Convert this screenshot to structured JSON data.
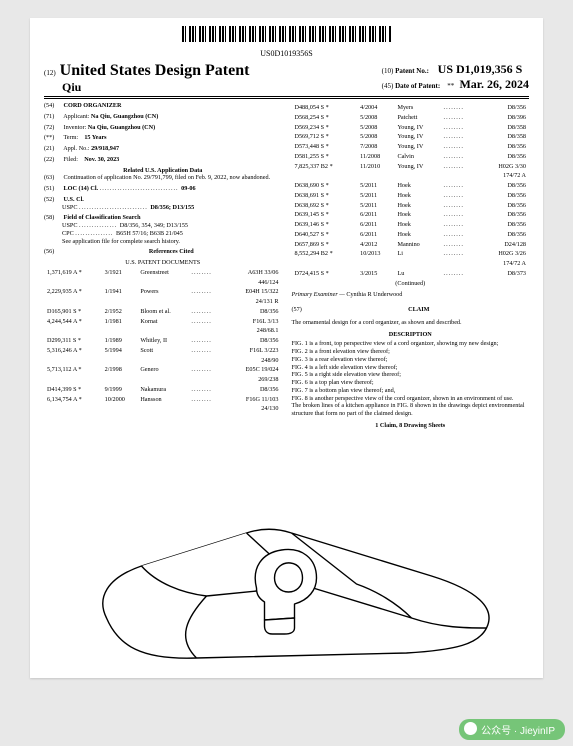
{
  "barcode_text": "US0D1019356S",
  "header": {
    "code12": "(12)",
    "title": "United States Design Patent",
    "applicant_line": "Qiu",
    "code10": "(10)",
    "patent_no_label": "Patent No.:",
    "patent_no": "US D1,019,356 S",
    "code45": "(45)",
    "date_label": "Date of Patent:",
    "date_star": "**",
    "date": "Mar. 26, 2024"
  },
  "left": {
    "s54": {
      "n": "(54)",
      "t": "CORD ORGANIZER"
    },
    "s71": {
      "n": "(71)",
      "t": "Applicant:",
      "v": "Na Qiu, Guangzhou (CN)"
    },
    "s72": {
      "n": "(72)",
      "t": "Inventor:",
      "v": "Na Qiu, Guangzhou (CN)"
    },
    "sterm": {
      "n": "(**)",
      "t": "Term:",
      "v": "15 Years"
    },
    "s21": {
      "n": "(21)",
      "t": "Appl. No.:",
      "v": "29/918,947"
    },
    "s22": {
      "n": "(22)",
      "t": "Filed:",
      "v": "Nov. 30, 2023"
    },
    "related_head": "Related U.S. Application Data",
    "s63": {
      "n": "(63)",
      "v": "Continuation of application No. 29/791,799, filed on Feb. 9, 2022, now abandoned."
    },
    "s51": {
      "n": "(51)",
      "t": "LOC (14) Cl.",
      "v": "09-06"
    },
    "s52": {
      "n": "(52)",
      "t": "U.S. Cl.",
      "l": "USPC",
      "v": "D8/356; D13/155"
    },
    "s58": {
      "n": "(58)",
      "t": "Field of Classification Search",
      "rows": [
        {
          "l": "USPC",
          "v": "D8/356, 354, 349; D13/155"
        },
        {
          "l": "CPC",
          "v": "B65H 57/16; B63B 21/045"
        }
      ],
      "note": "See application file for complete search history."
    },
    "s56": {
      "n": "(56)",
      "t": "References Cited"
    },
    "refs_head": "U.S. PATENT DOCUMENTS",
    "refs": [
      {
        "no": "1,371,619 A *",
        "d": "3/1921",
        "name": "Greenstreet",
        "cls": "A63H 33/06",
        "sub": "446/124"
      },
      {
        "no": "2,229,935 A *",
        "d": "1/1941",
        "name": "Powers",
        "cls": "E04H 15/322",
        "sub": "24/131 R"
      },
      {
        "no": "D165,901 S *",
        "d": "2/1952",
        "name": "Bloom et al.",
        "cls": "D8/356",
        "sub": ""
      },
      {
        "no": "4,244,544 A *",
        "d": "1/1981",
        "name": "Kornat",
        "cls": "F16L 3/13",
        "sub": "248/68.1"
      },
      {
        "no": "D299,311 S *",
        "d": "1/1989",
        "name": "Whitley, II",
        "cls": "D8/356",
        "sub": ""
      },
      {
        "no": "5,316,246 A *",
        "d": "5/1994",
        "name": "Scott",
        "cls": "F16L 3/223",
        "sub": "248/90"
      },
      {
        "no": "5,713,112 A *",
        "d": "2/1998",
        "name": "Genero",
        "cls": "E05C 19/024",
        "sub": "269/238"
      },
      {
        "no": "D414,399 S *",
        "d": "9/1999",
        "name": "Nakamura",
        "cls": "D8/356",
        "sub": ""
      },
      {
        "no": "6,134,754 A *",
        "d": "10/2000",
        "name": "Hansson",
        "cls": "F16G 11/103",
        "sub": "24/130"
      }
    ]
  },
  "right": {
    "refs": [
      {
        "no": "D488,054 S *",
        "d": "4/2004",
        "name": "Myers",
        "cls": "D8/356"
      },
      {
        "no": "D568,254 S *",
        "d": "5/2008",
        "name": "Patchett",
        "cls": "D8/396"
      },
      {
        "no": "D569,234 S *",
        "d": "5/2008",
        "name": "Young, IV",
        "cls": "D8/358"
      },
      {
        "no": "D569,712 S *",
        "d": "5/2008",
        "name": "Young, IV",
        "cls": "D8/358"
      },
      {
        "no": "D573,448 S *",
        "d": "7/2008",
        "name": "Young, IV",
        "cls": "D8/356"
      },
      {
        "no": "D581,255 S *",
        "d": "11/2008",
        "name": "Calvin",
        "cls": "D8/356"
      },
      {
        "no": "7,825,337 B2 *",
        "d": "11/2010",
        "name": "Young, IV",
        "cls": "H02G 3/30",
        "sub": "174/72 A"
      },
      {
        "no": "D638,690 S *",
        "d": "5/2011",
        "name": "Hoek",
        "cls": "D8/356"
      },
      {
        "no": "D638,691 S *",
        "d": "5/2011",
        "name": "Hoek",
        "cls": "D8/356"
      },
      {
        "no": "D638,692 S *",
        "d": "5/2011",
        "name": "Hoek",
        "cls": "D8/356"
      },
      {
        "no": "D639,145 S *",
        "d": "6/2011",
        "name": "Hoek",
        "cls": "D8/356"
      },
      {
        "no": "D639,146 S *",
        "d": "6/2011",
        "name": "Hoek",
        "cls": "D8/356"
      },
      {
        "no": "D640,527 S *",
        "d": "6/2011",
        "name": "Hoek",
        "cls": "D8/356"
      },
      {
        "no": "D657,869 S *",
        "d": "4/2012",
        "name": "Mannino",
        "cls": "D24/128"
      },
      {
        "no": "8,552,294 B2 *",
        "d": "10/2013",
        "name": "Li",
        "cls": "H02G 3/26",
        "sub": "174/72 A"
      },
      {
        "no": "D724,415 S *",
        "d": "3/2015",
        "name": "Lu",
        "cls": "D8/373"
      }
    ],
    "continued": "(Continued)",
    "examiner_label": "Primary Examiner —",
    "examiner": "Cynthia R Underwood",
    "s57": "(57)",
    "claim_head": "CLAIM",
    "claim_text": "The ornamental design for a cord organizer, as shown and described.",
    "desc_head": "DESCRIPTION",
    "desc": [
      "FIG. 1 is a front, top perspective view of a cord organizer, showing my new design;",
      "FIG. 2 is a front elevation view thereof;",
      "FIG. 3 is a rear elevation view thereof;",
      "FIG. 4 is a left side elevation view thereof;",
      "FIG. 5 is a right side elevation view thereof;",
      "FIG. 6 is a top plan view thereof;",
      "FIG. 7 is a bottom plan view thereof; and,",
      "FIG. 8 is another perspective view of the cord organizer, shown in an environment of use.",
      "The broken lines of a kitchen appliance in FIG. 8 shown in the drawings depict environmental structure that form no part of the claimed design."
    ],
    "footer": "1 Claim, 8 Drawing Sheets"
  },
  "watermark": "公众号 · JieyinIP"
}
